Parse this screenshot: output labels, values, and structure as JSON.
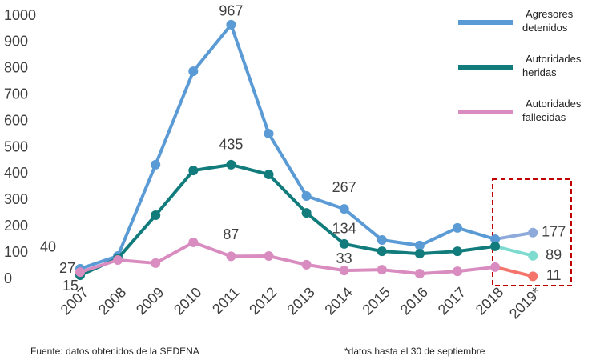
{
  "chart_data": {
    "type": "line",
    "categories": [
      "2007",
      "2008",
      "2009",
      "2010",
      "2011",
      "2012",
      "2013",
      "2014",
      "2015",
      "2016",
      "2017",
      "2018",
      "2019*"
    ],
    "series": [
      {
        "name": "Agresores detenidos",
        "color": "#5b9bd5",
        "last_color": "#8eaadb",
        "values": [
          40,
          88,
          435,
          790,
          967,
          553,
          316,
          267,
          149,
          128,
          195,
          152,
          177
        ],
        "value_labels": [
          "40",
          null,
          null,
          null,
          "967",
          null,
          null,
          "267",
          null,
          null,
          null,
          null,
          "177"
        ]
      },
      {
        "name": "Autoridades heridas",
        "color": "#127c7c",
        "last_color": "#7fdbd0",
        "values": [
          15,
          79,
          243,
          413,
          435,
          398,
          252,
          134,
          106,
          97,
          106,
          125,
          89
        ],
        "value_labels": [
          "15",
          null,
          null,
          null,
          "435",
          null,
          null,
          "134",
          null,
          null,
          null,
          null,
          "89"
        ]
      },
      {
        "name": "Autoridades fallecidas",
        "color": "#d98cbf",
        "last_color": "#f4736a",
        "values": [
          27,
          73,
          61,
          140,
          87,
          88,
          55,
          33,
          36,
          21,
          30,
          46,
          11
        ],
        "value_labels": [
          "27",
          null,
          null,
          null,
          "87",
          null,
          null,
          "33",
          null,
          null,
          null,
          null,
          "11"
        ]
      }
    ],
    "ylim": [
      0,
      1000
    ],
    "yticks": [
      0,
      100,
      200,
      300,
      400,
      500,
      600,
      700,
      800,
      900,
      1000
    ],
    "grid": false,
    "legend": "right",
    "footnotes": [
      "Fuente: datos obtenidos de la SEDENA",
      "*datos hasta el 30 de septiembre"
    ]
  }
}
